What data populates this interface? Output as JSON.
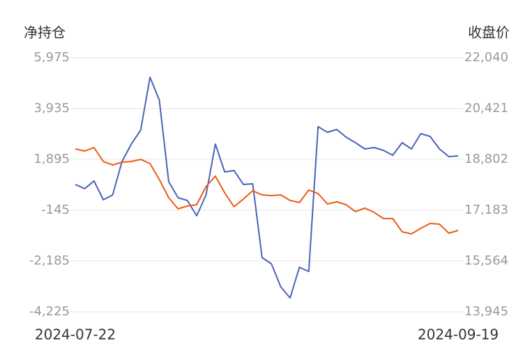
{
  "chart_data": {
    "type": "line",
    "y_label": "净持仓",
    "y2_label": "收盘价",
    "categories": [
      "2024-07-22",
      null,
      null,
      null,
      null,
      null,
      null,
      null,
      null,
      null,
      null,
      null,
      null,
      null,
      null,
      null,
      null,
      null,
      null,
      null,
      null,
      null,
      null,
      null,
      null,
      null,
      null,
      null,
      null,
      null,
      null,
      null,
      null,
      null,
      null,
      null,
      null,
      null,
      null,
      null,
      null,
      "2024-09-19"
    ],
    "series": [
      {
        "color": "#4a62b8",
        "axis": "y",
        "values": [
          889,
          721,
          1029,
          274,
          470,
          1811,
          2510,
          3069,
          5193,
          4270,
          1001,
          358,
          246,
          -369,
          470,
          2510,
          1392,
          1448,
          889,
          917,
          -2045,
          -2297,
          -3219,
          -3666,
          -2436,
          -2604,
          3208,
          2985,
          3097,
          2789,
          2566,
          2314,
          2370,
          2258,
          2063,
          2566,
          2314,
          2929,
          2817,
          2314,
          2007,
          2035
        ]
      },
      {
        "color": "#ee5a14",
        "axis": "y2",
        "values": [
          19135,
          19068,
          19179,
          18735,
          18625,
          18713,
          18735,
          18802,
          18669,
          18159,
          17582,
          17227,
          17316,
          17360,
          17937,
          18270,
          17737,
          17294,
          17538,
          17804,
          17671,
          17649,
          17671,
          17494,
          17427,
          17826,
          17715,
          17383,
          17449,
          17360,
          17139,
          17250,
          17116,
          16917,
          16917,
          16495,
          16429,
          16606,
          16762,
          16739,
          16451,
          16540
        ]
      }
    ],
    "ylim": [
      -4225,
      5975
    ],
    "yticks": [
      {
        "value": -4225,
        "label": "-4,225"
      },
      {
        "value": -2185,
        "label": "-2,185"
      },
      -145,
      {
        "value": 1895,
        "label": "1,895"
      },
      {
        "value": 3935,
        "label": "3,935"
      },
      {
        "value": 5975,
        "label": "5,975"
      }
    ],
    "y2lim": [
      13945,
      22040
    ],
    "y2ticks": [
      {
        "value": 13945,
        "label": "13,945"
      },
      {
        "value": 15564,
        "label": "15,564"
      },
      {
        "value": 17183,
        "label": "17,183"
      },
      {
        "value": 18802,
        "label": "18,802"
      },
      {
        "value": 20421,
        "label": "20,421"
      },
      {
        "value": 22040,
        "label": "22,040"
      }
    ],
    "grid": true
  }
}
